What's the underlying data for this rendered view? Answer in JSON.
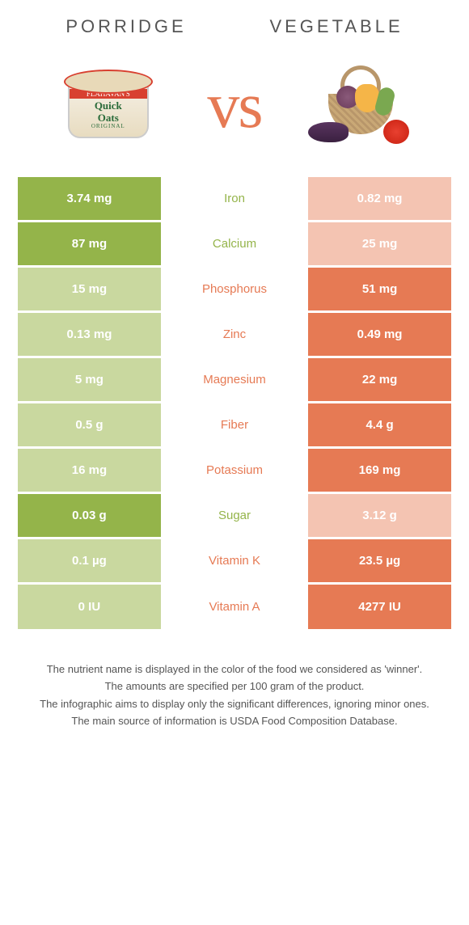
{
  "colors": {
    "left": "#94b44a",
    "right": "#e67a54",
    "left_dim": "#c9d89f",
    "right_dim": "#f4c4b2"
  },
  "header": {
    "left_title": "Porridge",
    "right_title": "Vegetable",
    "vs": "vs"
  },
  "porridge_art": {
    "brand": "FLAHAVAN'S",
    "product1": "Quick",
    "product2": "Oats",
    "variant": "ORIGINAL"
  },
  "rows": [
    {
      "name": "Iron",
      "left": "3.74 mg",
      "right": "0.82 mg",
      "winner": "left",
      "loser_side": "right"
    },
    {
      "name": "Calcium",
      "left": "87 mg",
      "right": "25 mg",
      "winner": "left",
      "loser_side": "right"
    },
    {
      "name": "Phosphorus",
      "left": "15 mg",
      "right": "51 mg",
      "winner": "right",
      "loser_side": "left"
    },
    {
      "name": "Zinc",
      "left": "0.13 mg",
      "right": "0.49 mg",
      "winner": "right",
      "loser_side": "left"
    },
    {
      "name": "Magnesium",
      "left": "5 mg",
      "right": "22 mg",
      "winner": "right",
      "loser_side": "left"
    },
    {
      "name": "Fiber",
      "left": "0.5 g",
      "right": "4.4 g",
      "winner": "right",
      "loser_side": "left"
    },
    {
      "name": "Potassium",
      "left": "16 mg",
      "right": "169 mg",
      "winner": "right",
      "loser_side": "left"
    },
    {
      "name": "Sugar",
      "left": "0.03 g",
      "right": "3.12 g",
      "winner": "left",
      "loser_side": "right"
    },
    {
      "name": "Vitamin K",
      "left": "0.1 µg",
      "right": "23.5 µg",
      "winner": "right",
      "loser_side": "left"
    },
    {
      "name": "Vitamin A",
      "left": "0 IU",
      "right": "4277 IU",
      "winner": "right",
      "loser_side": "left"
    }
  ],
  "footnote": {
    "l1": "The nutrient name is displayed in the color of the food we considered as 'winner'.",
    "l2": "The amounts are specified per 100 gram of the product.",
    "l3": "The infographic aims to display only the significant differences, ignoring minor ones.",
    "l4": "The main source of information is USDA Food Composition Database."
  }
}
